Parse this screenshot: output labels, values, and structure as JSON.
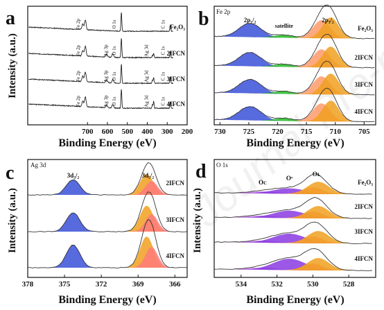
{
  "figure": {
    "watermark": "Journal Pre-proof"
  },
  "chart_data": [
    {
      "panel": "a",
      "type": "line",
      "title": "",
      "xlabel": "Binding Energy (eV)",
      "ylabel": "Intensity (a.u.)",
      "xlim": [
        1000,
        200
      ],
      "xticks": [
        700,
        600,
        500,
        400,
        300,
        200
      ],
      "series": [
        {
          "name": "Fe2O3",
          "label": "Fe₂O₃",
          "peaks_eV": [
            711,
            530,
            285
          ],
          "peak_labels": [
            "Fe 2p",
            "O 1s",
            "C 1s"
          ]
        },
        {
          "name": "2IFCN",
          "label": "2IFCN",
          "peaks_eV": [
            711,
            573,
            530,
            368,
            285
          ],
          "peak_labels": [
            "Fe 2p",
            "Ag 3p",
            "O 1s",
            "Ag 3d",
            "C 1s"
          ]
        },
        {
          "name": "3IFCN",
          "label": "3IFCN",
          "peaks_eV": [
            711,
            573,
            530,
            368,
            285
          ],
          "peak_labels": [
            "Fe 2p",
            "Ag 3p",
            "O 1s",
            "Ag 3d",
            "C 1s"
          ]
        },
        {
          "name": "4IFCN",
          "label": "4IFCN",
          "peaks_eV": [
            711,
            573,
            530,
            368,
            285
          ],
          "peak_labels": [
            "Fe 2p",
            "Ag 3p",
            "O 1s",
            "Ag 3d",
            "C 1s"
          ]
        }
      ]
    },
    {
      "panel": "b",
      "type": "area",
      "title": "Fe 2p",
      "xlabel": "Binding Energy (eV)",
      "ylabel": "",
      "xlim": [
        731,
        703
      ],
      "xticks": [
        730,
        725,
        720,
        715,
        710,
        705
      ],
      "annotations": [
        "2p₁/₂",
        "satellite",
        "2p₃/₂"
      ],
      "components": [
        {
          "name": "2p1/2",
          "center_eV": 724.8,
          "color": "#3a50d8"
        },
        {
          "name": "satellite",
          "center_eV": 718.9,
          "color": "#22bb22"
        },
        {
          "name": "2p3/2 (a)",
          "center_eV": 712.4,
          "color": "#ff9a6a"
        },
        {
          "name": "2p3/2 (b)",
          "center_eV": 710.8,
          "color": "#f0a020"
        }
      ],
      "series": [
        {
          "name": "Fe2O3",
          "label": "Fe₂O₃"
        },
        {
          "name": "2IFCN",
          "label": "2IFCN"
        },
        {
          "name": "3IFCN",
          "label": "3IFCN"
        },
        {
          "name": "4IFCN",
          "label": "4IFCN"
        }
      ]
    },
    {
      "panel": "c",
      "type": "area",
      "title": "Ag 3d",
      "xlabel": "Binding Energy (eV)",
      "ylabel": "Intensity (a.u.)",
      "xlim": [
        378,
        365
      ],
      "xticks": [
        378,
        375,
        372,
        369,
        366
      ],
      "annotations": [
        "3d₃/₂",
        "3d₅/₂"
      ],
      "components": [
        {
          "name": "3d3/2",
          "center_eV": 374.3,
          "color": "#3a50d8"
        },
        {
          "name": "3d5/2 (a)",
          "center_eV": 368.3,
          "color": "#f0a020"
        },
        {
          "name": "3d5/2 (b)",
          "center_eV": 367.9,
          "color": "#ff7a7a"
        }
      ],
      "series": [
        {
          "name": "2IFCN",
          "label": "2IFCN"
        },
        {
          "name": "3IFCN",
          "label": "3IFCN"
        },
        {
          "name": "4IFCN",
          "label": "4IFCN"
        }
      ]
    },
    {
      "panel": "d",
      "type": "area",
      "title": "O 1s",
      "xlabel": "Binding Energy (eV)",
      "ylabel": "Intensity (a.u.)",
      "xlim": [
        535.5,
        526.5
      ],
      "xticks": [
        534,
        532,
        530,
        528
      ],
      "annotations": [
        "Oᴄ",
        "Oᵛ",
        "Oʟ"
      ],
      "components": [
        {
          "name": "OC",
          "center_eV": 532.8,
          "color": "#c070e0"
        },
        {
          "name": "OV",
          "center_eV": 531.3,
          "color": "#8a3ae0"
        },
        {
          "name": "OL (a)",
          "center_eV": 530.0,
          "color": "#ff8a70"
        },
        {
          "name": "OL (b)",
          "center_eV": 529.7,
          "color": "#f0a020"
        }
      ],
      "series": [
        {
          "name": "Fe2O3",
          "label": "Fe₂O₃"
        },
        {
          "name": "2IFCN",
          "label": "2IFCN"
        },
        {
          "name": "3IFCN",
          "label": "3IFCN"
        },
        {
          "name": "4IFCN",
          "label": "4IFCN"
        }
      ]
    }
  ]
}
